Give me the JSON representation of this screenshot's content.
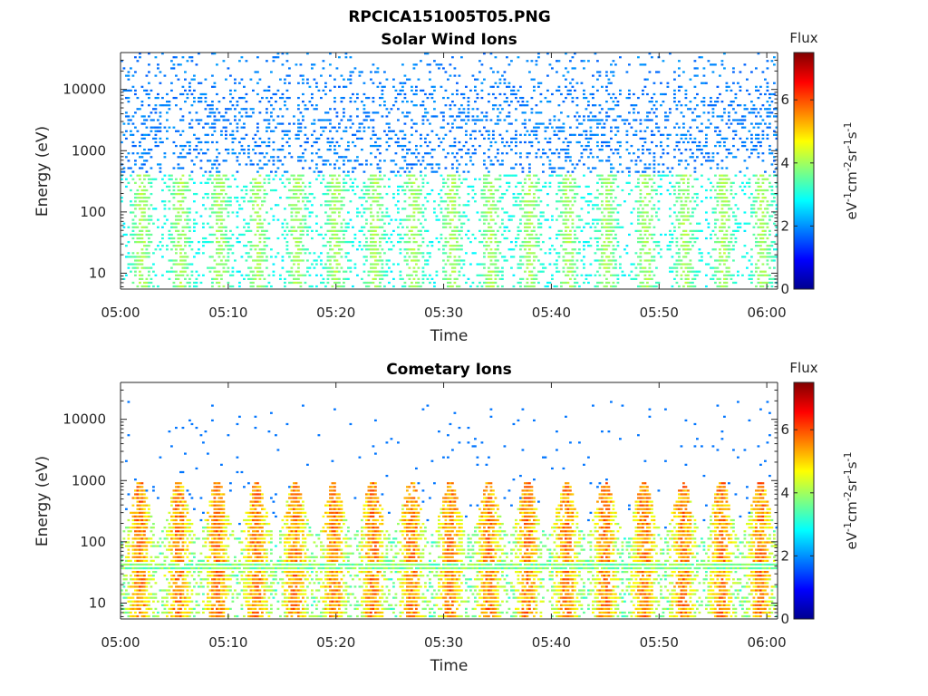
{
  "figure_title": "RPCICA151005T05.PNG",
  "chart_data": [
    {
      "type": "heatmap",
      "title": "Solar Wind Ions",
      "xlabel": "Time",
      "ylabel": "Energy (eV)",
      "x_range": [
        "05:00",
        "06:01"
      ],
      "x_ticks": [
        "05:00",
        "05:10",
        "05:20",
        "05:30",
        "05:40",
        "05:50",
        "06:00"
      ],
      "y_scale": "log",
      "y_range": [
        5.5,
        40000
      ],
      "y_ticks": [
        "10",
        "100",
        "1000",
        "10000"
      ],
      "colorbar": {
        "title": "Flux",
        "label": "eV-1cm-2sr-1s-1",
        "range": [
          0,
          7.5
        ],
        "ticks": [
          "0",
          "2",
          "4",
          "6"
        ],
        "colormap": "jet"
      },
      "description_values": {
        "sweep_period_min": 3.6,
        "background_peak_energy_eV": 3000,
        "core_energy_eV": [
          15,
          400
        ],
        "core_flux": 3.2,
        "background_flux": 1.6
      }
    },
    {
      "type": "heatmap",
      "title": "Cometary Ions",
      "xlabel": "Time",
      "ylabel": "Energy (eV)",
      "x_range": [
        "05:00",
        "06:01"
      ],
      "x_ticks": [
        "05:00",
        "05:10",
        "05:20",
        "05:30",
        "05:40",
        "05:50",
        "06:00"
      ],
      "y_scale": "log",
      "y_range": [
        5.5,
        40000
      ],
      "y_ticks": [
        "10",
        "100",
        "1000",
        "10000"
      ],
      "colorbar": {
        "title": "Flux",
        "label": "eV-1cm-2sr-1s-1",
        "range": [
          0,
          7.5
        ],
        "ticks": [
          "0",
          "2",
          "4",
          "6"
        ],
        "colormap": "jet"
      },
      "description_values": {
        "sweep_period_min": 3.6,
        "core_energy_eV": [
          6,
          1000
        ],
        "core_flux": 4.6,
        "peak_flux": 6.5,
        "band_energy_eV": 40
      }
    }
  ]
}
